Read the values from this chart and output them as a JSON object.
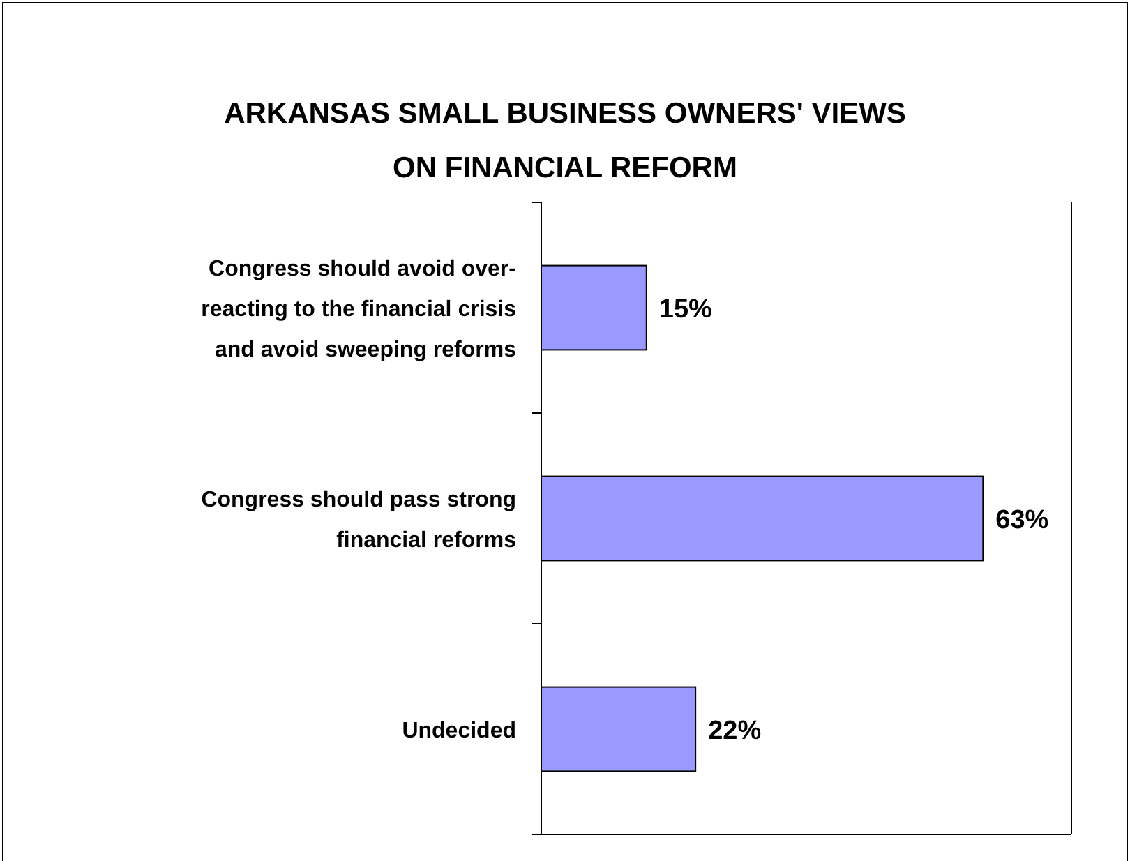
{
  "chart_data": {
    "type": "bar",
    "orientation": "horizontal",
    "title": "ARKANSAS SMALL BUSINESS OWNERS' VIEWS ON FINANCIAL REFORM",
    "categories": [
      "Congress should avoid over-reacting to the financial crisis and avoid sweeping reforms",
      "Congress should pass strong financial reforms",
      "Undecided"
    ],
    "values": [
      15,
      63,
      22
    ],
    "color": "#9999ff",
    "value_labels": [
      "15%",
      "63%",
      "22%"
    ],
    "tick_labels": "y"
  }
}
